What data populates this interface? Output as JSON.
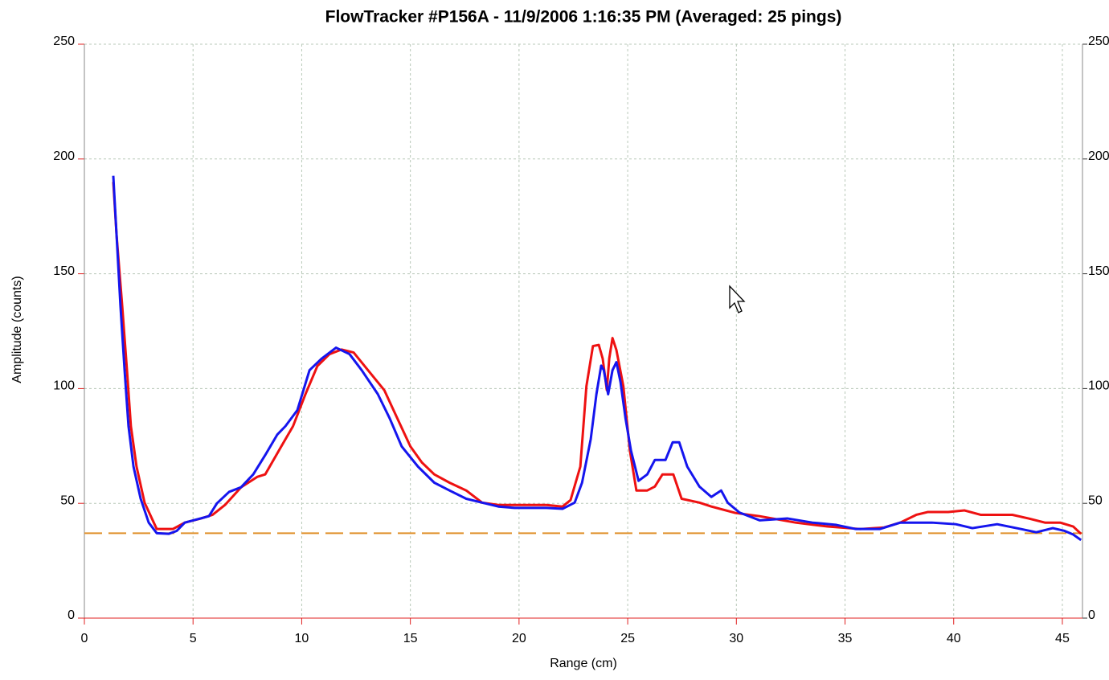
{
  "chart_data": {
    "type": "line",
    "title": "FlowTracker #P156A  -  11/9/2006 1:16:35 PM (Averaged: 25 pings)",
    "x_label": "Range (cm)",
    "y_label": "Amplitude (counts)",
    "xlim": [
      0,
      46
    ],
    "xticks": [
      0,
      5,
      10,
      15,
      20,
      25,
      30,
      35,
      40,
      45
    ],
    "ylim": [
      0,
      250
    ],
    "yticks": [
      0,
      50,
      100,
      150,
      200,
      250
    ],
    "y2lim": [
      0,
      250
    ],
    "y2ticks": [
      0,
      50,
      100,
      150,
      200,
      250
    ],
    "grid": true,
    "reference_line": {
      "value": 37,
      "color": "#e0902a"
    },
    "series": [
      {
        "color": "#ee1111",
        "x": [
          1.33,
          1.48,
          1.74,
          1.96,
          2.14,
          2.4,
          2.77,
          3.33,
          4.07,
          4.62,
          5.36,
          5.9,
          6.47,
          7.21,
          7.95,
          8.32,
          9.06,
          9.6,
          10.17,
          10.72,
          11.28,
          11.83,
          12.39,
          13.05,
          13.8,
          14.4,
          15,
          15.53,
          16.1,
          16.8,
          17.57,
          18.3,
          19.05,
          21.26,
          22,
          22.37,
          22.82,
          23.1,
          23.4,
          23.67,
          23.85,
          24.04,
          24.15,
          24.3,
          24.48,
          24.8,
          25.1,
          25.4,
          25.9,
          26.25,
          26.6,
          27.1,
          27.48,
          28.3,
          28.85,
          29.96,
          31.07,
          32.73,
          34.2,
          35.7,
          36.8,
          37.54,
          38.28,
          38.8,
          39.75,
          40.5,
          41.24,
          42,
          42.7,
          43.45,
          44.2,
          44.9,
          45.5,
          45.86
        ],
        "values": [
          190,
          167,
          136,
          108,
          83.6,
          66,
          50.3,
          38.8,
          38.8,
          41.6,
          43.4,
          45,
          49.3,
          57,
          61.5,
          62.6,
          74.8,
          83.6,
          97.5,
          109.8,
          115,
          117,
          115.7,
          108,
          99.3,
          87,
          74.8,
          67.8,
          62.6,
          59,
          55.6,
          50.3,
          49.3,
          49.3,
          48.6,
          51.4,
          66,
          101,
          118.5,
          119,
          113,
          99.3,
          113,
          122,
          116.8,
          101,
          73,
          55.6,
          55.6,
          57.3,
          62.6,
          62.6,
          52,
          50.3,
          48.6,
          45.8,
          44.4,
          41.6,
          39.9,
          38.8,
          39.5,
          41.6,
          45,
          46.2,
          46.2,
          46.9,
          45,
          45,
          45,
          43.4,
          41.6,
          41.6,
          39.9,
          36.7
        ]
      },
      {
        "color": "#1515ee",
        "x": [
          1.33,
          1.48,
          1.66,
          1.85,
          2.03,
          2.26,
          2.59,
          2.96,
          3.33,
          3.88,
          4.25,
          4.62,
          5.18,
          5.73,
          6.1,
          6.66,
          7.21,
          7.77,
          8.32,
          8.88,
          9.25,
          9.8,
          10.36,
          10.91,
          11.58,
          12.2,
          12.76,
          13.5,
          14.05,
          14.6,
          15.35,
          16.1,
          16.8,
          17.57,
          18.3,
          19.05,
          19.8,
          20.5,
          21.26,
          22,
          22.56,
          22.9,
          23.3,
          23.56,
          23.78,
          23.9,
          24.1,
          24.3,
          24.48,
          24.67,
          24.9,
          25.15,
          25.5,
          25.9,
          26.25,
          26.74,
          27.07,
          27.37,
          27.74,
          28.3,
          28.85,
          29.3,
          29.6,
          30.14,
          31.07,
          32.36,
          33.5,
          34.6,
          35.5,
          36.6,
          37.54,
          39,
          40.1,
          40.86,
          42,
          43.1,
          43.8,
          44.56,
          45.1,
          45.5,
          45.86
        ],
        "values": [
          192.7,
          167,
          136,
          108,
          83.6,
          66,
          52,
          41.6,
          37,
          36.7,
          38,
          41.6,
          43,
          44.4,
          50,
          55,
          57,
          62.6,
          71,
          80,
          83.6,
          90.6,
          108,
          113,
          117.8,
          115,
          108,
          97.6,
          87,
          74.8,
          66,
          59,
          55.6,
          52,
          50.3,
          48.6,
          48,
          48,
          48,
          47.6,
          50.3,
          59,
          78,
          97.5,
          110,
          108,
          97.5,
          108,
          111.5,
          102.8,
          87,
          73,
          59.8,
          62.6,
          68.9,
          68.9,
          76.6,
          76.6,
          66,
          57.3,
          52.8,
          55.6,
          50.3,
          46,
          42.6,
          43.4,
          41.6,
          40.6,
          38.8,
          38.8,
          41.6,
          41.6,
          40.9,
          39.2,
          40.9,
          38.8,
          37.4,
          39.2,
          38,
          36.4,
          34
        ]
      }
    ]
  }
}
